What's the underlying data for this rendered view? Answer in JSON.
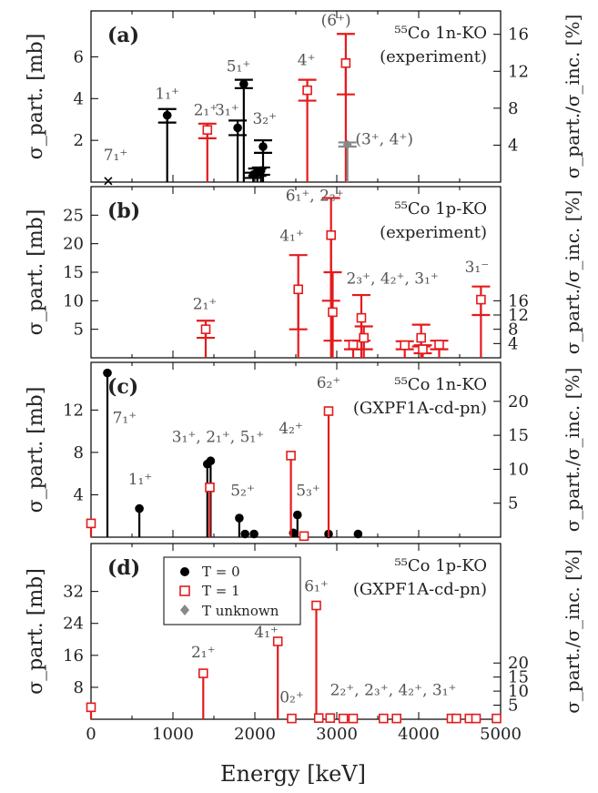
{
  "figure": {
    "xlabel": "Energy [keV]",
    "xticks": [
      "0",
      "1000",
      "2000",
      "3000",
      "4000",
      "5000"
    ]
  },
  "legend": {
    "entries": [
      {
        "label": "T = 0",
        "marker": "filled-circle",
        "color": "#000000"
      },
      {
        "label": "T = 1",
        "marker": "open-square",
        "color": "#e41a1c"
      },
      {
        "label": "T unknown",
        "marker": "diamond",
        "color": "#888888"
      }
    ]
  },
  "colors": {
    "t0": "#000000",
    "t1": "#e41a1c",
    "tunk": "#888888"
  },
  "chart_data": [
    {
      "type": "scatter",
      "panel": "(a)",
      "title_line1": "⁵⁵Co 1n-KO",
      "title_line2": "(experiment)",
      "ylabel_left": "σ_part. [mb]",
      "ylabel_right": "σ_part./σ_inc. [%]",
      "xlim": [
        0,
        5000
      ],
      "ylim": [
        0,
        8.2
      ],
      "yticks_left": [
        2,
        4,
        6
      ],
      "yticks_right": [
        "4",
        "8",
        "12",
        "16"
      ],
      "right_scale": 2.26,
      "series": [
        {
          "name": "T = 0",
          "points": [
            {
              "x": 930,
              "y": 3.2,
              "lo": 2.85,
              "hi": 3.5
            },
            {
              "x": 1790,
              "y": 2.6,
              "lo": 2.25,
              "hi": 2.95
            },
            {
              "x": 1865,
              "y": 4.7,
              "lo": 4.5,
              "hi": 4.9
            },
            {
              "x": 2100,
              "y": 1.7,
              "lo": 1.4,
              "hi": 2.0
            },
            {
              "x": 2030,
              "y": 0.5,
              "lo": 0.3,
              "hi": 0.65
            },
            {
              "x": 2075,
              "y": 0.55,
              "lo": 0.35,
              "hi": 0.7
            },
            {
              "x": 1980,
              "y": 0.35,
              "lo": 0.2,
              "hi": 0.45
            }
          ]
        },
        {
          "name": "T = 1",
          "points": [
            {
              "x": 1420,
              "y": 2.5,
              "lo": 2.1,
              "hi": 2.8
            },
            {
              "x": 2640,
              "y": 4.4,
              "lo": 3.9,
              "hi": 4.9
            },
            {
              "x": 3110,
              "y": 5.7,
              "lo": 4.2,
              "hi": 7.1
            }
          ]
        },
        {
          "name": "T unknown",
          "points": [
            {
              "x": 3130,
              "y": 1.8,
              "lo": 1.7,
              "hi": 1.9
            }
          ]
        },
        {
          "name": "upper limit",
          "points": [
            {
              "x": 210,
              "y": 0.05
            }
          ]
        }
      ],
      "labels": [
        {
          "text": "7₁⁺",
          "x": 300,
          "y": 1.05,
          "color": "#555"
        },
        {
          "text": "1₁⁺",
          "x": 930,
          "y": 4.0,
          "color": "#555"
        },
        {
          "text": "2₁⁺",
          "x": 1400,
          "y": 3.2,
          "color": "#555"
        },
        {
          "text": "3₁⁺",
          "x": 1660,
          "y": 3.2,
          "color": "#555"
        },
        {
          "text": "5₁⁺",
          "x": 1800,
          "y": 5.3,
          "color": "#555"
        },
        {
          "text": "3₂⁺",
          "x": 2120,
          "y": 2.8,
          "color": "#555"
        },
        {
          "text": "4⁺",
          "x": 2630,
          "y": 5.6,
          "color": "#555"
        },
        {
          "text": "(6⁺)",
          "x": 2990,
          "y": 7.5,
          "color": "#555"
        },
        {
          "text": "(3⁺, 4⁺)",
          "x": 3580,
          "y": 1.8,
          "color": "#555"
        }
      ]
    },
    {
      "type": "scatter",
      "panel": "(b)",
      "title_line1": "⁵⁵Co 1p-KO",
      "title_line2": "(experiment)",
      "ylabel_left": "σ_part. [mb]",
      "ylabel_right": "σ_part./σ_inc. [%]",
      "xlim": [
        0,
        5000
      ],
      "ylim": [
        0,
        30
      ],
      "yticks_left": [
        5,
        10,
        15,
        20,
        25
      ],
      "yticks_right": [
        "4",
        "8",
        "12",
        "16"
      ],
      "right_scale": 1.6,
      "series": [
        {
          "name": "T = 1",
          "points": [
            {
              "x": 1400,
              "y": 5.0,
              "lo": 3.5,
              "hi": 6.5
            },
            {
              "x": 2530,
              "y": 12.0,
              "lo": 5.0,
              "hi": 18.0
            },
            {
              "x": 2930,
              "y": 21.5,
              "lo": 10.0,
              "hi": 28.0
            },
            {
              "x": 2950,
              "y": 8.0,
              "lo": 3.0,
              "hi": 15.0
            },
            {
              "x": 3200,
              "y": 2.3,
              "lo": 1.5,
              "hi": 3.0
            },
            {
              "x": 3300,
              "y": 7.0,
              "lo": 3.0,
              "hi": 11.0
            },
            {
              "x": 3330,
              "y": 3.5,
              "lo": 1.5,
              "hi": 5.5
            },
            {
              "x": 3830,
              "y": 2.2,
              "lo": 1.5,
              "hi": 2.9
            },
            {
              "x": 4030,
              "y": 3.5,
              "lo": 2.0,
              "hi": 5.8
            },
            {
              "x": 4050,
              "y": 1.5,
              "lo": 0.8,
              "hi": 2.2
            },
            {
              "x": 4250,
              "y": 2.3,
              "lo": 1.5,
              "hi": 3.0
            },
            {
              "x": 4760,
              "y": 10.2,
              "lo": 7.5,
              "hi": 12.5
            }
          ]
        }
      ],
      "labels": [
        {
          "text": "2₁⁺",
          "x": 1390,
          "y": 8.5,
          "color": "#555"
        },
        {
          "text": "4₁⁺",
          "x": 2450,
          "y": 20.5,
          "color": "#555"
        },
        {
          "text": "6₁⁺, 2₂⁺",
          "x": 2730,
          "y": 27.5,
          "color": "#555"
        },
        {
          "text": "2₃⁺, 4₂⁺, 3₁⁺",
          "x": 3680,
          "y": 13.0,
          "color": "#555"
        },
        {
          "text": "3₁⁻",
          "x": 4710,
          "y": 15.0,
          "color": "#555"
        }
      ]
    },
    {
      "type": "scatter",
      "panel": "(c)",
      "title_line1": "⁵⁵Co 1n-KO",
      "title_line2": "(GXPF1A-cd-pn)",
      "ylabel_left": "σ_part. [mb]",
      "ylabel_right": "σ_part./σ_inc. [%]",
      "xlim": [
        0,
        5000
      ],
      "ylim": [
        0,
        16.5
      ],
      "yticks_left": [
        4,
        8,
        12
      ],
      "yticks_right": [
        "5",
        "10",
        "15",
        "20"
      ],
      "right_scale": 1.56,
      "series": [
        {
          "name": "T = 0",
          "points": [
            {
              "x": 200,
              "y": 15.5
            },
            {
              "x": 590,
              "y": 2.7
            },
            {
              "x": 1420,
              "y": 6.9
            },
            {
              "x": 1460,
              "y": 7.2
            },
            {
              "x": 1810,
              "y": 1.8
            },
            {
              "x": 1880,
              "y": 0.3
            },
            {
              "x": 1990,
              "y": 0.3
            },
            {
              "x": 2470,
              "y": 0.4
            },
            {
              "x": 2520,
              "y": 2.1
            },
            {
              "x": 2900,
              "y": 0.3
            },
            {
              "x": 3260,
              "y": 0.3
            }
          ]
        },
        {
          "name": "T = 1",
          "points": [
            {
              "x": 0,
              "y": 1.3
            },
            {
              "x": 1450,
              "y": 4.7
            },
            {
              "x": 2440,
              "y": 7.7
            },
            {
              "x": 2600,
              "y": 0.1
            },
            {
              "x": 2900,
              "y": 11.9
            }
          ]
        }
      ],
      "labels": [
        {
          "text": "7₁⁺",
          "x": 410,
          "y": 10.8,
          "color": "#555"
        },
        {
          "text": "1₁⁺",
          "x": 600,
          "y": 5.0,
          "color": "#555"
        },
        {
          "text": "3₁⁺, 2₁⁺, 5₁⁺",
          "x": 1550,
          "y": 9.0,
          "color": "#555"
        },
        {
          "text": "5₂⁺",
          "x": 1850,
          "y": 3.9,
          "color": "#555"
        },
        {
          "text": "4₂⁺",
          "x": 2440,
          "y": 9.8,
          "color": "#555"
        },
        {
          "text": "5₃⁺",
          "x": 2650,
          "y": 3.9,
          "color": "#555"
        },
        {
          "text": "6₂⁺",
          "x": 2900,
          "y": 14.1,
          "color": "#555"
        }
      ]
    },
    {
      "type": "scatter",
      "panel": "(d)",
      "title_line1": "⁵⁵Co 1p-KO",
      "title_line2": "(GXPF1A-cd-pn)",
      "ylabel_left": "σ_part. [mb]",
      "ylabel_right": "σ_part./σ_inc. [%]",
      "xlim": [
        0,
        5000
      ],
      "ylim": [
        0,
        44
      ],
      "yticks_left": [
        8,
        16,
        24,
        32
      ],
      "yticks_right": [
        "5",
        "10",
        "15",
        "20"
      ],
      "right_scale": 1.42,
      "series": [
        {
          "name": "T = 1",
          "points": [
            {
              "x": 0,
              "y": 3.0
            },
            {
              "x": 1370,
              "y": 11.5
            },
            {
              "x": 2280,
              "y": 19.5
            },
            {
              "x": 2450,
              "y": 0.2
            },
            {
              "x": 2750,
              "y": 28.5
            },
            {
              "x": 2780,
              "y": 0.3
            },
            {
              "x": 2920,
              "y": 0.3
            },
            {
              "x": 3080,
              "y": 0.2
            },
            {
              "x": 3200,
              "y": 0.2
            },
            {
              "x": 3570,
              "y": 0.2
            },
            {
              "x": 3730,
              "y": 0.2
            },
            {
              "x": 4400,
              "y": 0.2
            },
            {
              "x": 4460,
              "y": 0.2
            },
            {
              "x": 4620,
              "y": 0.2
            },
            {
              "x": 4700,
              "y": 0.2
            },
            {
              "x": 4950,
              "y": 0.2
            }
          ]
        }
      ],
      "labels": [
        {
          "text": "2₁⁺",
          "x": 1370,
          "y": 15.5,
          "color": "#555"
        },
        {
          "text": "4₁⁺",
          "x": 2140,
          "y": 20.5,
          "color": "#555"
        },
        {
          "text": "0₂⁺",
          "x": 2450,
          "y": 4.2,
          "color": "#555"
        },
        {
          "text": "6₁⁺",
          "x": 2750,
          "y": 32.0,
          "color": "#555"
        },
        {
          "text": "2₂⁺, 2₃⁺, 4₂⁺, 3₁⁺",
          "x": 3690,
          "y": 6.0,
          "color": "#555"
        }
      ]
    }
  ]
}
